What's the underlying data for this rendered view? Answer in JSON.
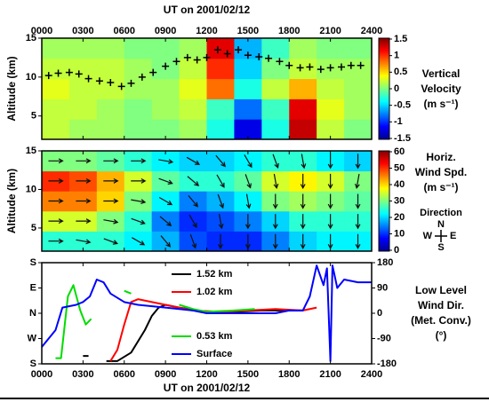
{
  "chart_data": [
    {
      "type": "heatmap",
      "xlabel": "UT on 2001/02/12",
      "ylabel": "Altitude (km)",
      "xlim": [
        0,
        24
      ],
      "xticks": [
        {
          "value": 0,
          "label": "0000"
        },
        {
          "value": 3,
          "label": "0300"
        },
        {
          "value": 6,
          "label": "0600"
        },
        {
          "value": 9,
          "label": "0900"
        },
        {
          "value": 12,
          "label": "1200"
        },
        {
          "value": 15,
          "label": "1500"
        },
        {
          "value": 18,
          "label": "1800"
        },
        {
          "value": 21,
          "label": "2100"
        },
        {
          "value": 24,
          "label": "2400"
        }
      ],
      "ylim": [
        2,
        15
      ],
      "yticks": [
        5,
        10,
        15
      ],
      "colormap": "jet",
      "xbins": [
        0,
        2,
        4,
        6,
        8,
        10,
        12,
        14,
        16,
        18,
        20,
        22,
        24
      ],
      "ybins": [
        2,
        4.6,
        7.2,
        9.8,
        12.4,
        15
      ],
      "z": [
        [
          0.2,
          0.1,
          0.1,
          0,
          0,
          0.1,
          -0.3,
          -1.2,
          -0.3,
          1.3,
          0.2,
          0
        ],
        [
          0.2,
          0.2,
          0.1,
          0,
          0.1,
          0.2,
          -0.2,
          -0.8,
          -0.2,
          1.2,
          0.3,
          0.1
        ],
        [
          0.3,
          0.2,
          0.2,
          0.1,
          0.1,
          0.3,
          0.8,
          -0.3,
          0.2,
          0.6,
          0.2,
          0.1
        ],
        [
          0.2,
          0.2,
          0.2,
          0.1,
          0,
          0.2,
          1,
          -0.5,
          0,
          0.2,
          0.1,
          0.1
        ],
        [
          0.1,
          0.1,
          0.1,
          0,
          0,
          0.1,
          1.2,
          -0.6,
          -0.2,
          0.1,
          0,
          0
        ]
      ],
      "markers": {
        "x": [
          0.5,
          1.2,
          2,
          2.7,
          3.4,
          4.2,
          5,
          5.8,
          6.5,
          7.3,
          8.1,
          9,
          9.8,
          10.6,
          11.3,
          12,
          12.8,
          13.5,
          14.3,
          15,
          15.8,
          16.5,
          17.3,
          18,
          18.8,
          19.5,
          20.3,
          21,
          21.8,
          22.5,
          23.2
        ],
        "y": [
          10.2,
          10.5,
          10.6,
          10.4,
          9.8,
          9.5,
          9.3,
          8.8,
          9.2,
          10,
          10.6,
          11.4,
          12,
          12.5,
          12.2,
          12.5,
          13.5,
          13,
          13.5,
          12.8,
          12.6,
          12.4,
          12,
          11.5,
          11.2,
          11.3,
          11,
          11.2,
          11.3,
          11.5,
          11.5
        ]
      },
      "colorbar": {
        "label": [
          "Vertical",
          "Velocity",
          "(m s⁻¹)"
        ],
        "clim": [
          -1.5,
          1.5
        ],
        "ticks": [
          1.5,
          1,
          0.5,
          0,
          -0.5,
          -1,
          -1.5
        ]
      }
    },
    {
      "type": "heatmap",
      "ylabel": "Altitude (km)",
      "xlim": [
        0,
        24
      ],
      "xticks": [
        0,
        3,
        6,
        9,
        12,
        15,
        18,
        21,
        24
      ],
      "ylim": [
        2,
        15
      ],
      "yticks": [
        5,
        10,
        15
      ],
      "colormap": "jet",
      "xbins": [
        0,
        2,
        4,
        6,
        8,
        10,
        12,
        14,
        16,
        18,
        20,
        22,
        24
      ],
      "ybins": [
        2,
        4.6,
        7.2,
        9.8,
        12.4,
        15
      ],
      "z": [
        [
          25,
          25,
          25,
          22,
          18,
          12,
          10,
          10,
          15,
          20,
          22,
          22
        ],
        [
          35,
          35,
          30,
          25,
          15,
          10,
          12,
          15,
          20,
          25,
          25,
          25
        ],
        [
          45,
          45,
          40,
          30,
          22,
          15,
          18,
          22,
          30,
          32,
          30,
          28
        ],
        [
          50,
          48,
          42,
          35,
          28,
          25,
          25,
          28,
          35,
          38,
          35,
          30
        ],
        [
          30,
          30,
          28,
          25,
          22,
          20,
          20,
          22,
          25,
          25,
          22,
          20
        ]
      ],
      "directions": [
        [
          270,
          280,
          290,
          300,
          320,
          340,
          0,
          0,
          0,
          0,
          0,
          0
        ],
        [
          270,
          270,
          280,
          290,
          310,
          330,
          350,
          0,
          0,
          0,
          0,
          0
        ],
        [
          270,
          270,
          270,
          280,
          300,
          320,
          340,
          350,
          0,
          0,
          0,
          0
        ],
        [
          270,
          270,
          270,
          270,
          290,
          310,
          330,
          340,
          350,
          0,
          0,
          10
        ],
        [
          270,
          270,
          270,
          270,
          280,
          300,
          320,
          330,
          340,
          350,
          0,
          0
        ]
      ],
      "colorbar": {
        "label": [
          "Horiz.",
          "Wind Spd.",
          "(m s⁻¹)"
        ],
        "clim": [
          0,
          60
        ],
        "ticks": [
          60,
          50,
          40,
          30,
          20,
          10,
          0
        ]
      },
      "direction_label": "Direction",
      "compass": [
        "N",
        "W",
        "E",
        "S"
      ]
    },
    {
      "type": "line",
      "xlabel": "UT on 2001/02/12",
      "ylabel": [
        "Low Level",
        "Wind Dir.",
        "(Met. Conv.)",
        "(°)"
      ],
      "xlim": [
        0,
        24
      ],
      "xticks": [
        {
          "value": 0,
          "label": "0000"
        },
        {
          "value": 3,
          "label": "0300"
        },
        {
          "value": 6,
          "label": "0600"
        },
        {
          "value": 9,
          "label": "0900"
        },
        {
          "value": 12,
          "label": "1200"
        },
        {
          "value": 15,
          "label": "1500"
        },
        {
          "value": 18,
          "label": "1800"
        },
        {
          "value": 21,
          "label": "2100"
        },
        {
          "value": 24,
          "label": "2400"
        }
      ],
      "ylim": [
        -180,
        180
      ],
      "yticks": [
        {
          "value": 180,
          "label": "S"
        },
        {
          "value": 90,
          "label": "E"
        },
        {
          "value": 0,
          "label": "N"
        },
        {
          "value": -90,
          "label": "W"
        },
        {
          "value": -180,
          "label": "S"
        }
      ],
      "y2lim": [
        -180,
        180
      ],
      "y2ticks": [
        180,
        90,
        0,
        -90,
        -180
      ],
      "series": [
        {
          "name": "1.52 km",
          "color": "#000000",
          "x": [
            3,
            3.4,
            3.5,
            4.7,
            5.5,
            6.5,
            7.5,
            8,
            8.5,
            9,
            10,
            12,
            14,
            16,
            18,
            19
          ],
          "values": [
            -152,
            -152,
            null,
            -170,
            -170,
            -140,
            -60,
            -10,
            20,
            30,
            20,
            5,
            5,
            10,
            10,
            10
          ]
        },
        {
          "name": "1.02 km",
          "color": "#ff0000",
          "x": [
            5,
            5.5,
            6,
            6.5,
            7,
            9,
            11,
            13,
            15,
            17,
            19,
            20
          ],
          "values": [
            -170,
            -130,
            -40,
            40,
            50,
            30,
            10,
            5,
            10,
            15,
            10,
            20
          ]
        },
        {
          "name": "0.53 km",
          "color": "#00dd00",
          "x": [
            1,
            1.4,
            1.9,
            2.3,
            2.8,
            3.2,
            3.6,
            4,
            6,
            6.5,
            7,
            10,
            11,
            12,
            14,
            15.5
          ],
          "values": [
            -160,
            -160,
            60,
            100,
            10,
            -40,
            -20,
            null,
            80,
            70,
            null,
            30,
            15,
            5,
            10,
            15
          ]
        },
        {
          "name": "Surface",
          "color": "#0000ff",
          "x": [
            0,
            1,
            1.5,
            2.5,
            3,
            3.5,
            4,
            4.5,
            5,
            6,
            7,
            9,
            11,
            12,
            15,
            17,
            18,
            19,
            19.5,
            20,
            20.5,
            20.75,
            21,
            21.15,
            21.5,
            22,
            23,
            24
          ],
          "values": [
            -120,
            -60,
            20,
            30,
            40,
            60,
            120,
            110,
            70,
            40,
            30,
            20,
            10,
            0,
            0,
            0,
            10,
            10,
            60,
            170,
            100,
            160,
            -170,
            170,
            90,
            120,
            110,
            110
          ]
        }
      ]
    }
  ]
}
